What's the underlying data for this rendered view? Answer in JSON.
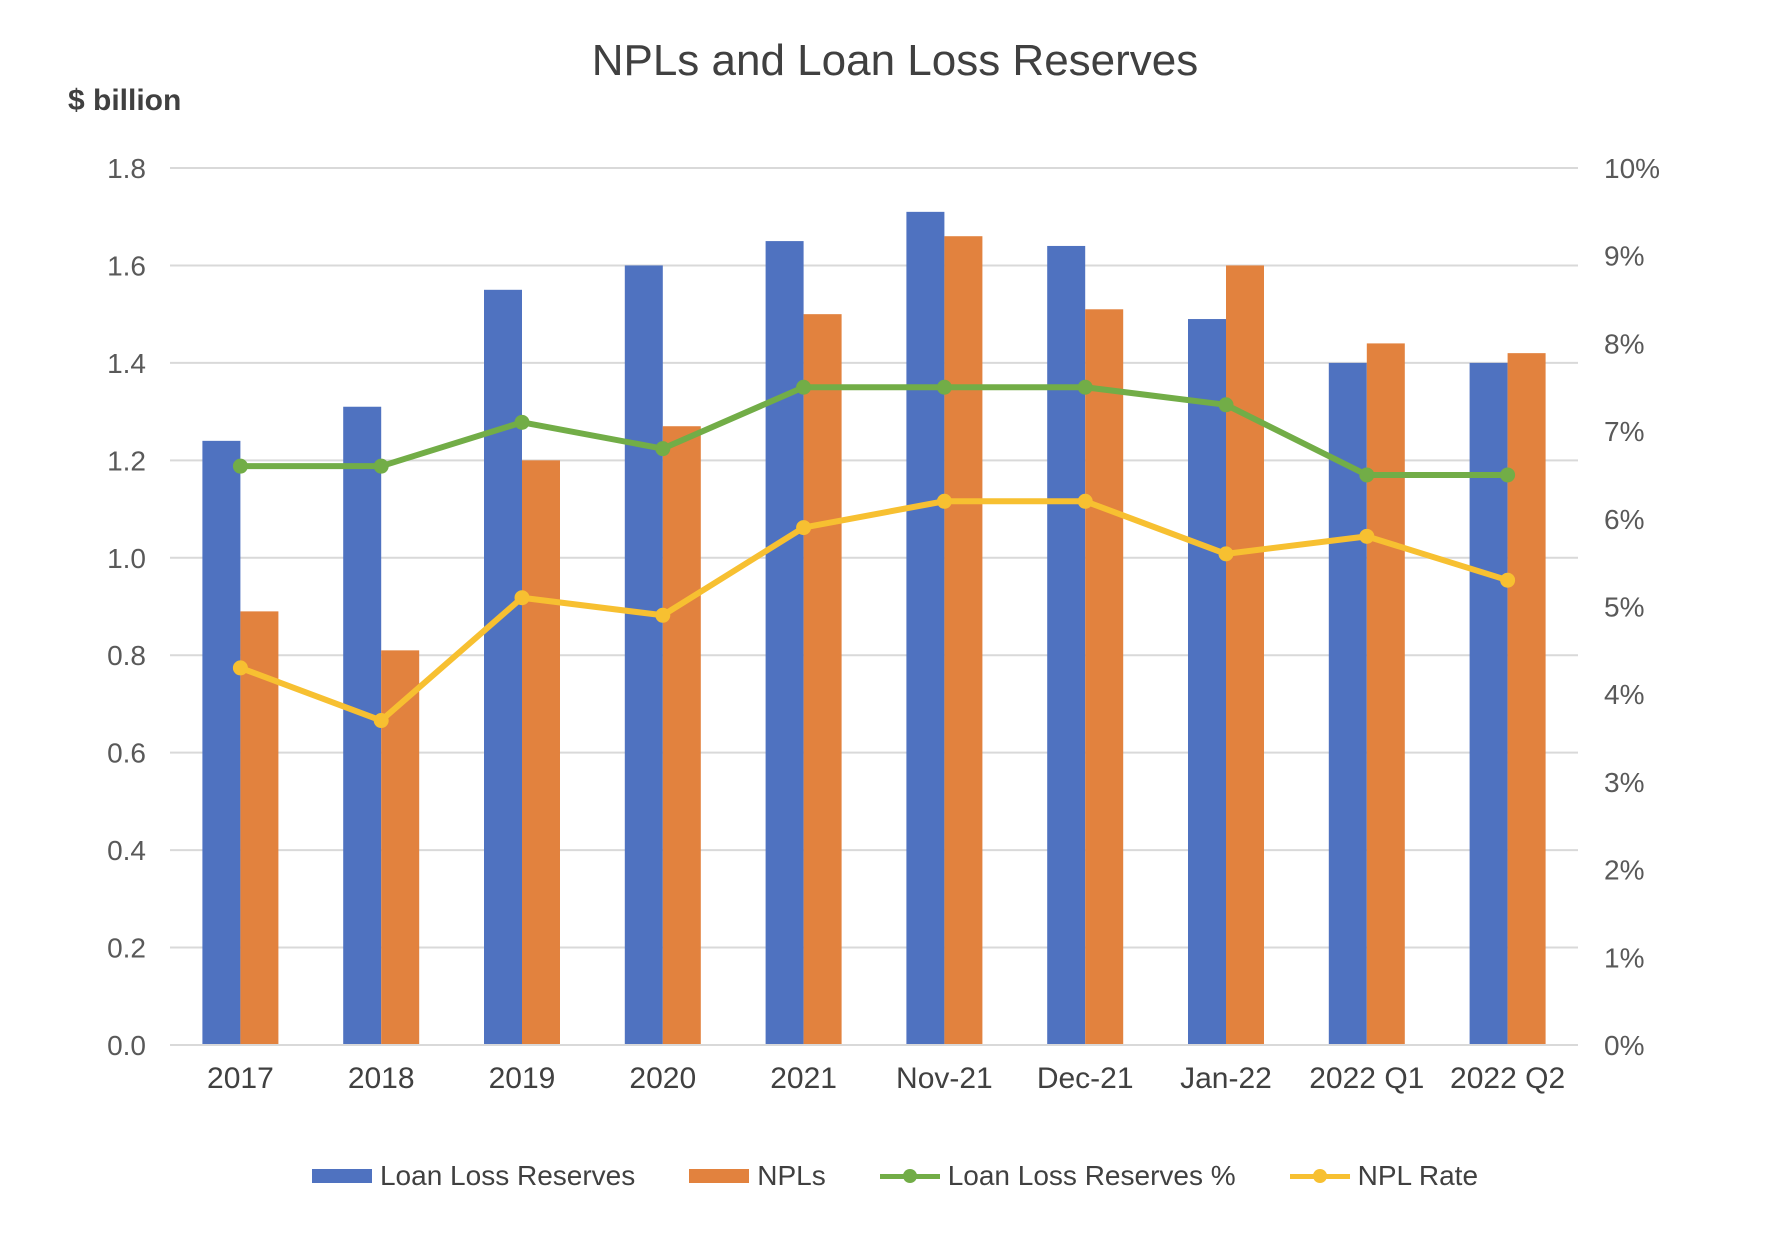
{
  "chart_data": {
    "type": "bar",
    "title": "NPLs and Loan Loss Reserves",
    "ylabel": "$ billion",
    "ylim": [
      0,
      1.8
    ],
    "y_ticks": [
      "0.0",
      "0.2",
      "0.4",
      "0.6",
      "0.8",
      "1.0",
      "1.2",
      "1.4",
      "1.6",
      "1.8"
    ],
    "y2lim": [
      0,
      10
    ],
    "y2_ticks": [
      "0%",
      "1%",
      "2%",
      "3%",
      "4%",
      "5%",
      "6%",
      "7%",
      "8%",
      "9%",
      "10%"
    ],
    "categories": [
      "2017",
      "2018",
      "2019",
      "2020",
      "2021",
      "Nov-21",
      "Dec-21",
      "Jan-22",
      "2022 Q1",
      "2022 Q2"
    ],
    "series": [
      {
        "name": "Loan Loss Reserves",
        "kind": "bar",
        "axis": "left",
        "color": "#4f72c0",
        "values": [
          1.24,
          1.31,
          1.55,
          1.6,
          1.65,
          1.71,
          1.64,
          1.49,
          1.4,
          1.4
        ]
      },
      {
        "name": "NPLs",
        "kind": "bar",
        "axis": "left",
        "color": "#e2823e",
        "values": [
          0.89,
          0.81,
          1.2,
          1.27,
          1.5,
          1.66,
          1.51,
          1.6,
          1.44,
          1.42
        ]
      },
      {
        "name": "Loan Loss Reserves %",
        "kind": "line",
        "axis": "right",
        "color": "#72ad47",
        "values": [
          6.6,
          6.6,
          7.1,
          6.8,
          7.5,
          7.5,
          7.5,
          7.3,
          6.5,
          6.5
        ]
      },
      {
        "name": "NPL Rate",
        "kind": "line",
        "axis": "right",
        "color": "#f7c031",
        "values": [
          4.3,
          3.7,
          5.1,
          4.9,
          5.9,
          6.2,
          6.2,
          5.6,
          5.8,
          5.3
        ]
      }
    ],
    "grid": true,
    "legend_position": "bottom"
  }
}
